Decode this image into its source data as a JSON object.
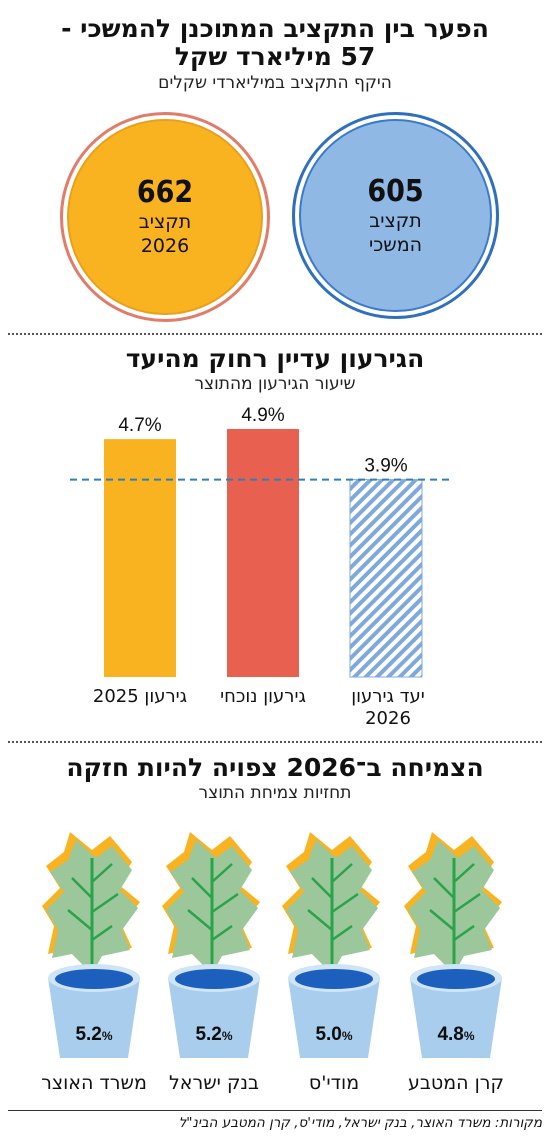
{
  "section1": {
    "title_line1": "הפער בין התקציב המתוכנן להמשכי -",
    "title_line2": "57 מיליארד שקל",
    "subtitle": "היקף התקציב במיליארדי שקלים",
    "circles": [
      {
        "value": "662",
        "label_line1": "תקציב",
        "label_line2": "2026",
        "color": "#f9b321",
        "ring": "#e27c6a"
      },
      {
        "value": "605",
        "label_line1": "תקציב",
        "label_line2": "המשכי",
        "color": "#8fb8e5",
        "ring": "#2f6fbf"
      }
    ]
  },
  "section2": {
    "title": "הגירעון עדיין רחוק מהיעד",
    "subtitle": "שיעור הגירעון מהתוצר"
  },
  "chart_data": {
    "type": "bar",
    "title": "הגירעון עדיין רחוק מהיעד",
    "subtitle": "שיעור הגירעון מהתוצר",
    "categories": [
      "גירעון 2025",
      "גירעון נוכחי",
      "יעד גירעון 2026"
    ],
    "values": [
      4.7,
      4.9,
      3.9
    ],
    "value_labels": [
      "4.7%",
      "4.9%",
      "3.9%"
    ],
    "colors": [
      "#f9b321",
      "#e8604f",
      "#7fa9dc"
    ],
    "target_line": 3.9,
    "ylim": [
      0,
      4.9
    ],
    "grid": false
  },
  "section3": {
    "title": "הצמיחה ב־2026 צפויה להיות חזקה",
    "subtitle": "תחזיות צמיחת התוצר",
    "forecasts": [
      {
        "source": "משרד האוצר",
        "value": "5.2",
        "unit": "%"
      },
      {
        "source": "בנק ישראל",
        "value": "5.2",
        "unit": "%"
      },
      {
        "source": "מודי'ס",
        "value": "5.0",
        "unit": "%"
      },
      {
        "source": "קרן המטבע",
        "value": "4.8",
        "unit": "%"
      }
    ]
  },
  "footer": "מקורות: משרד האוצר, בנק ישראל, מודי'ס, קרן המטבע הבינ\"ל"
}
